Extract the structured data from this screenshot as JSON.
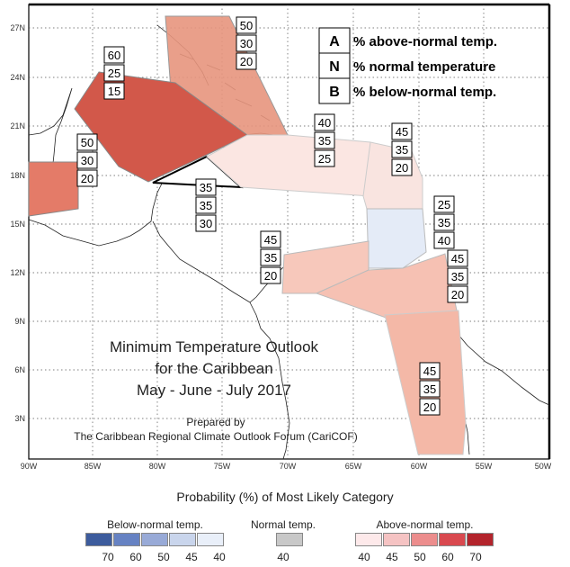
{
  "map": {
    "title_lines": [
      "Minimum Temperature Outlook",
      "for the Caribbean",
      "May - June - July 2017"
    ],
    "prepared_lines": [
      "Prepared by",
      "The Caribbean Regional Climate Outlook Forum (CariCOF)"
    ],
    "lat_ticks": [
      "27N",
      "24N",
      "21N",
      "18N",
      "15N",
      "12N",
      "9N",
      "6N",
      "3N"
    ],
    "lon_ticks": [
      "90W",
      "85W",
      "80W",
      "75W",
      "70W",
      "65W",
      "60W",
      "55W",
      "50W"
    ],
    "legend": [
      {
        "key": "A",
        "text": "% above-normal temp."
      },
      {
        "key": "N",
        "text": "% normal temperature"
      },
      {
        "key": "B",
        "text": "% below-normal temp."
      }
    ],
    "regions": [
      {
        "name": "bahamas",
        "values": [
          "50",
          "30",
          "20"
        ],
        "color": "#e7957d"
      },
      {
        "name": "cuba",
        "values": [
          "60",
          "25",
          "15"
        ],
        "color": "#d2584a"
      },
      {
        "name": "belize",
        "values": [
          "50",
          "30",
          "20"
        ],
        "color": "#e47b68"
      },
      {
        "name": "cayman",
        "values": [
          "35",
          "35",
          "30"
        ],
        "color": "#ffffff"
      },
      {
        "name": "hispaniola",
        "values": [
          "40",
          "35",
          "25"
        ],
        "color": "#fbe6e2"
      },
      {
        "name": "leeward",
        "values": [
          "45",
          "35",
          "20"
        ],
        "color": "#f9e4e0"
      },
      {
        "name": "windward",
        "values": [
          "25",
          "35",
          "40"
        ],
        "color": "#e4ebf7"
      },
      {
        "name": "abc-islands",
        "values": [
          "45",
          "35",
          "20"
        ],
        "color": "#f7c8bb"
      },
      {
        "name": "trinidad",
        "values": [
          "45",
          "35",
          "20"
        ],
        "color": "#f6c1b3"
      },
      {
        "name": "guianas",
        "values": [
          "45",
          "35",
          "20"
        ],
        "color": "#f4b8a7"
      }
    ]
  },
  "colorbar": {
    "title": "Probability (%) of Most Likely Category",
    "below": {
      "label": "Below-normal temp.",
      "ticks": [
        "70",
        "60",
        "50",
        "45",
        "40"
      ],
      "colors": [
        "#3d5c9d",
        "#6682c3",
        "#98aad7",
        "#c9d5ec",
        "#e9eff9"
      ]
    },
    "normal": {
      "label": "Normal temp.",
      "ticks": [
        "40"
      ],
      "colors": [
        "#c8c8c8"
      ]
    },
    "above": {
      "label": "Above-normal temp.",
      "ticks": [
        "40",
        "45",
        "50",
        "60",
        "70"
      ],
      "colors": [
        "#fde9ea",
        "#f5c3c3",
        "#ec8d8d",
        "#d9494f",
        "#b3242c"
      ]
    }
  }
}
